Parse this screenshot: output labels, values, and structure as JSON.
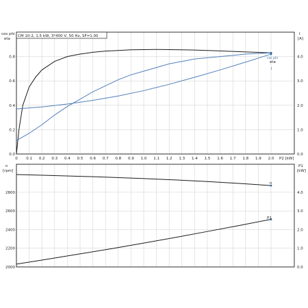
{
  "colors": {
    "frame": "#000000",
    "grid": "#cccccc",
    "curve_dark": "#1a1a1a",
    "curve_blue": "#4f7fb8",
    "marker": "#2f68a8"
  },
  "chart_data": [
    {
      "type": "line",
      "info_box": "CM 10-2, 1.5 kW, 3*400 V, 50 Hz, SF=1.00",
      "x_label": "P2 [kW]",
      "x_range": [
        0,
        2.0
      ],
      "x_ticks": [
        "0",
        "0.1",
        "0.2",
        "0.3",
        "0.4",
        "0.5",
        "0.6",
        "0.7",
        "0.8",
        "0.9",
        "1.0",
        "1.1",
        "1.2",
        "1.3",
        "1.4",
        "1.5",
        "1.6",
        "1.7",
        "1.8",
        "1.9",
        "2.0"
      ],
      "left_axis": {
        "label_line1": "cos phi",
        "label_line2": "eta",
        "range": [
          0,
          1.0
        ],
        "ticks": [
          {
            "value": 0.0,
            "label": "0.0"
          },
          {
            "value": 0.2,
            "label": "0.2"
          },
          {
            "value": 0.4,
            "label": "0.4"
          },
          {
            "value": 0.6,
            "label": "0.6"
          },
          {
            "value": 0.8,
            "label": "0.8"
          }
        ]
      },
      "right_axis": {
        "label_line1": "I",
        "label_line2": "[A]",
        "range": [
          0,
          5.0
        ],
        "ticks": [
          {
            "value": 0.0,
            "label": "0.0"
          },
          {
            "value": 1.0,
            "label": "1.0"
          },
          {
            "value": 2.0,
            "label": "2.0"
          },
          {
            "value": 3.0,
            "label": "3.0"
          },
          {
            "value": 4.0,
            "label": "4.0"
          }
        ]
      },
      "grid": true,
      "series": [
        {
          "name": "eta",
          "axis": "left",
          "style": "dark",
          "x": [
            0,
            0.02,
            0.05,
            0.1,
            0.15,
            0.2,
            0.3,
            0.4,
            0.5,
            0.6,
            0.7,
            0.8,
            0.9,
            1.0,
            1.1,
            1.2,
            1.3,
            1.4,
            1.5,
            1.6,
            1.7,
            1.8,
            1.9,
            2.0
          ],
          "y": [
            0,
            0.2,
            0.4,
            0.55,
            0.63,
            0.69,
            0.76,
            0.8,
            0.82,
            0.835,
            0.845,
            0.85,
            0.855,
            0.857,
            0.858,
            0.857,
            0.855,
            0.853,
            0.85,
            0.846,
            0.842,
            0.838,
            0.834,
            0.83
          ]
        },
        {
          "name": "cos phi",
          "axis": "left",
          "style": "blue",
          "x": [
            0,
            0.1,
            0.2,
            0.3,
            0.4,
            0.5,
            0.6,
            0.7,
            0.8,
            0.9,
            1.0,
            1.1,
            1.2,
            1.3,
            1.4,
            1.5,
            1.6,
            1.7,
            1.8,
            1.9,
            2.0
          ],
          "y": [
            0.11,
            0.17,
            0.24,
            0.32,
            0.39,
            0.45,
            0.51,
            0.56,
            0.61,
            0.65,
            0.68,
            0.71,
            0.74,
            0.76,
            0.78,
            0.79,
            0.8,
            0.81,
            0.82,
            0.825,
            0.83
          ]
        },
        {
          "name": "I",
          "axis": "right",
          "style": "blue",
          "x": [
            0,
            0.2,
            0.4,
            0.6,
            0.8,
            1.0,
            1.2,
            1.4,
            1.6,
            1.8,
            2.0
          ],
          "y": [
            1.85,
            1.93,
            2.05,
            2.2,
            2.38,
            2.6,
            2.86,
            3.15,
            3.45,
            3.77,
            4.1
          ]
        },
        {
          "name": "I",
          "axis": "right",
          "style": "dark",
          "x": [
            2.0,
            2.0
          ],
          "y": [
            4.1,
            4.14
          ]
        }
      ],
      "point_labels": [
        "cos phi",
        "eta",
        "I"
      ]
    },
    {
      "type": "line",
      "x_range": [
        0,
        2.0
      ],
      "left_axis": {
        "label_line1": "n",
        "label_line2": "[rpm]",
        "range": [
          2000,
          3100
        ],
        "ticks": [
          {
            "value": 2000,
            "label": "2000"
          },
          {
            "value": 2200,
            "label": "2200"
          },
          {
            "value": 2400,
            "label": "2400"
          },
          {
            "value": 2600,
            "label": "2600"
          },
          {
            "value": 2800,
            "label": "2800"
          }
        ]
      },
      "right_axis": {
        "label_line1": "P1",
        "label_line2": "[kW]",
        "range": [
          0,
          5.5
        ],
        "ticks": [
          {
            "value": 0.0,
            "label": "0.0"
          },
          {
            "value": 1.0,
            "label": "1.0"
          },
          {
            "value": 2.0,
            "label": "2.0"
          },
          {
            "value": 3.0,
            "label": "3.0"
          },
          {
            "value": 4.0,
            "label": "4.0"
          }
        ]
      },
      "grid": true,
      "series": [
        {
          "name": "n",
          "axis": "left",
          "style": "dark",
          "x": [
            0,
            0.25,
            0.5,
            0.75,
            1.0,
            1.25,
            1.5,
            1.75,
            2.0
          ],
          "y": [
            2990,
            2981,
            2971,
            2960,
            2947,
            2932,
            2915,
            2895,
            2872
          ]
        },
        {
          "name": "P1",
          "axis": "right",
          "style": "dark",
          "x": [
            0,
            0.25,
            0.5,
            0.75,
            1.0,
            1.25,
            1.5,
            1.75,
            2.0
          ],
          "y": [
            0.15,
            0.42,
            0.7,
            0.98,
            1.28,
            1.58,
            1.9,
            2.22,
            2.55
          ]
        }
      ],
      "point_labels": [
        "n",
        "P1"
      ]
    }
  ]
}
